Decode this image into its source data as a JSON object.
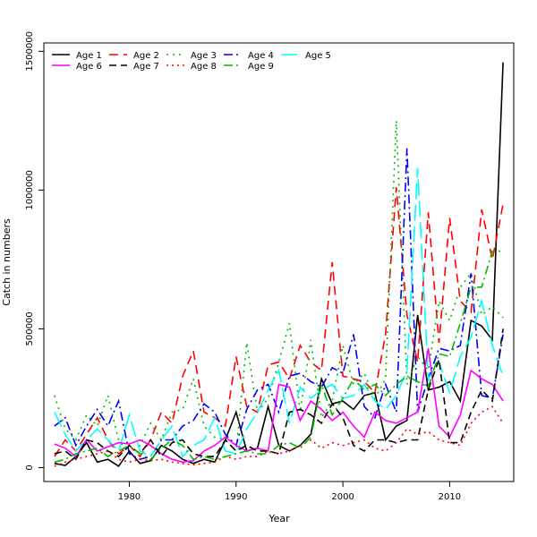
{
  "chart_data": {
    "type": "line",
    "title": "",
    "xlabel": "Year",
    "ylabel": "Catch in numbers",
    "xlim": [
      1972,
      2016
    ],
    "ylim": [
      -50000,
      1530000
    ],
    "x_ticks": [
      1980,
      1990,
      2000,
      2010
    ],
    "y_ticks": [
      0,
      500000,
      1000000,
      1500000
    ],
    "y_tick_labels": [
      "0",
      "500000",
      "1000000",
      "1500000"
    ],
    "grid": false,
    "legend_position": "top-left",
    "x": [
      1973,
      1974,
      1975,
      1976,
      1977,
      1978,
      1979,
      1980,
      1981,
      1982,
      1983,
      1984,
      1985,
      1986,
      1987,
      1988,
      1989,
      1990,
      1991,
      1992,
      1993,
      1994,
      1995,
      1996,
      1997,
      1998,
      1999,
      2000,
      2001,
      2002,
      2003,
      2004,
      2005,
      2006,
      2007,
      2008,
      2009,
      2010,
      2011,
      2012,
      2013,
      2014,
      2015
    ],
    "series": [
      {
        "name": "Age 1",
        "color": "#000000",
        "dash": "solid",
        "values": [
          15000,
          8000,
          40000,
          90000,
          20000,
          30000,
          5000,
          60000,
          15000,
          25000,
          80000,
          60000,
          30000,
          15000,
          30000,
          20000,
          100000,
          200000,
          60000,
          70000,
          220000,
          80000,
          60000,
          80000,
          120000,
          320000,
          230000,
          240000,
          210000,
          260000,
          270000,
          100000,
          150000,
          170000,
          550000,
          280000,
          290000,
          310000,
          240000,
          530000,
          510000,
          460000,
          1460000
        ]
      },
      {
        "name": "Age 2",
        "color": "#ff0000",
        "dash": "10 6",
        "values": [
          40000,
          100000,
          60000,
          120000,
          180000,
          100000,
          50000,
          80000,
          40000,
          100000,
          200000,
          160000,
          330000,
          420000,
          200000,
          180000,
          150000,
          400000,
          220000,
          200000,
          370000,
          380000,
          320000,
          440000,
          380000,
          350000,
          740000,
          330000,
          320000,
          310000,
          270000,
          480000,
          1010000,
          550000,
          380000,
          920000,
          450000,
          900000,
          600000,
          560000,
          930000,
          750000,
          950000
        ]
      },
      {
        "name": "Age 3",
        "color": "#00bb00",
        "dash": "2 5",
        "values": [
          260000,
          140000,
          100000,
          190000,
          150000,
          260000,
          100000,
          50000,
          80000,
          160000,
          100000,
          200000,
          210000,
          320000,
          150000,
          110000,
          100000,
          60000,
          450000,
          200000,
          250000,
          380000,
          520000,
          200000,
          460000,
          180000,
          240000,
          440000,
          300000,
          340000,
          250000,
          320000,
          1250000,
          300000,
          400000,
          350000,
          600000,
          530000,
          650000,
          700000,
          550000,
          580000,
          540000
        ]
      },
      {
        "name": "Age 4",
        "color": "#0000ff",
        "dash": "10 4 2 4",
        "values": [
          150000,
          180000,
          80000,
          150000,
          210000,
          150000,
          240000,
          50000,
          30000,
          40000,
          100000,
          100000,
          150000,
          170000,
          230000,
          200000,
          120000,
          80000,
          210000,
          280000,
          300000,
          200000,
          330000,
          340000,
          310000,
          290000,
          360000,
          340000,
          480000,
          220000,
          180000,
          300000,
          200000,
          1150000,
          200000,
          320000,
          430000,
          420000,
          440000,
          700000,
          260000,
          250000,
          480000
        ]
      },
      {
        "name": "Age 5",
        "color": "#00ffff",
        "dash": "18 6",
        "values": [
          200000,
          120000,
          60000,
          100000,
          140000,
          100000,
          60000,
          190000,
          60000,
          40000,
          100000,
          150000,
          40000,
          80000,
          100000,
          180000,
          60000,
          50000,
          140000,
          200000,
          280000,
          350000,
          160000,
          290000,
          250000,
          280000,
          300000,
          250000,
          260000,
          300000,
          240000,
          210000,
          260000,
          350000,
          1080000,
          320000,
          380000,
          270000,
          400000,
          470000,
          600000,
          440000,
          330000
        ]
      },
      {
        "name": "Age 6",
        "color": "#ff00ff",
        "dash": "solid",
        "values": [
          85000,
          70000,
          40000,
          100000,
          60000,
          75000,
          90000,
          85000,
          100000,
          80000,
          50000,
          30000,
          20000,
          25000,
          60000,
          80000,
          110000,
          80000,
          60000,
          70000,
          60000,
          300000,
          290000,
          170000,
          240000,
          210000,
          170000,
          200000,
          150000,
          110000,
          200000,
          170000,
          160000,
          180000,
          200000,
          430000,
          150000,
          110000,
          190000,
          350000,
          320000,
          300000,
          240000
        ]
      },
      {
        "name": "Age 7",
        "color": "#000000",
        "dash": "8 5",
        "values": [
          50000,
          60000,
          30000,
          100000,
          90000,
          60000,
          40000,
          80000,
          50000,
          100000,
          40000,
          90000,
          100000,
          50000,
          40000,
          40000,
          100000,
          60000,
          80000,
          60000,
          60000,
          50000,
          200000,
          210000,
          190000,
          160000,
          230000,
          180000,
          80000,
          60000,
          100000,
          100000,
          90000,
          100000,
          100000,
          280000,
          390000,
          90000,
          90000,
          200000,
          280000,
          240000,
          500000
        ]
      },
      {
        "name": "Age 8",
        "color": "#ff0000",
        "dash": "2 4",
        "values": [
          5000,
          20000,
          30000,
          40000,
          50000,
          60000,
          30000,
          20000,
          30000,
          25000,
          30000,
          20000,
          15000,
          10000,
          15000,
          20000,
          40000,
          30000,
          40000,
          40000,
          60000,
          50000,
          60000,
          80000,
          100000,
          70000,
          90000,
          80000,
          90000,
          100000,
          70000,
          60000,
          90000,
          140000,
          120000,
          130000,
          100000,
          90000,
          80000,
          160000,
          200000,
          220000,
          160000
        ]
      },
      {
        "name": "Age 9",
        "color": "#00bb00",
        "dash": "10 4 2 4",
        "values": [
          20000,
          30000,
          50000,
          60000,
          70000,
          40000,
          60000,
          80000,
          50000,
          30000,
          70000,
          100000,
          80000,
          30000,
          40000,
          30000,
          40000,
          50000,
          60000,
          50000,
          50000,
          80000,
          90000,
          70000,
          110000,
          300000,
          190000,
          250000,
          320000,
          280000,
          300000,
          260000,
          300000,
          330000,
          310000,
          290000,
          410000,
          400000,
          520000,
          650000,
          650000,
          780000,
          780000
        ]
      }
    ]
  }
}
